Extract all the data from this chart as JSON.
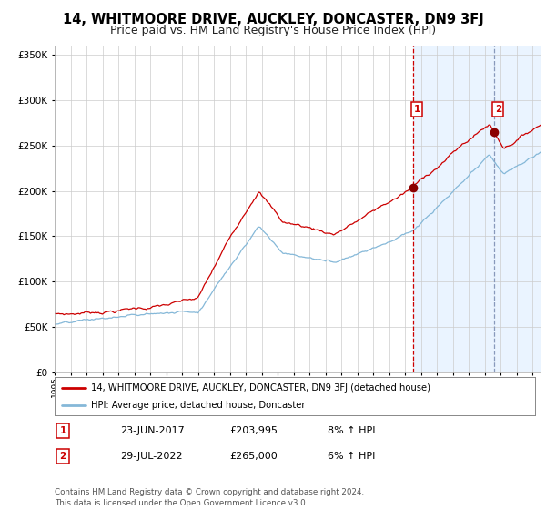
{
  "title": "14, WHITMOORE DRIVE, AUCKLEY, DONCASTER, DN9 3FJ",
  "subtitle": "Price paid vs. HM Land Registry's House Price Index (HPI)",
  "legend_line1": "14, WHITMOORE DRIVE, AUCKLEY, DONCASTER, DN9 3FJ (detached house)",
  "legend_line2": "HPI: Average price, detached house, Doncaster",
  "annotation1_date": "23-JUN-2017",
  "annotation1_price": "£203,995",
  "annotation1_hpi": "8% ↑ HPI",
  "annotation1_year": 2017.48,
  "annotation1_value": 203995,
  "annotation2_date": "29-JUL-2022",
  "annotation2_price": "£265,000",
  "annotation2_hpi": "6% ↑ HPI",
  "annotation2_year": 2022.58,
  "annotation2_value": 265000,
  "red_line_color": "#cc0000",
  "blue_line_color": "#85b8d8",
  "shading_color": "#ddeeff",
  "vline1_color": "#cc0000",
  "vline2_color": "#8899bb",
  "marker_color": "#8b0000",
  "box_edge_color": "#cc0000",
  "ylim": [
    0,
    360000
  ],
  "yticks": [
    0,
    50000,
    100000,
    150000,
    200000,
    250000,
    300000,
    350000
  ],
  "title_fontsize": 10.5,
  "subtitle_fontsize": 9,
  "footer_text": "Contains HM Land Registry data © Crown copyright and database right 2024.\nThis data is licensed under the Open Government Licence v3.0.",
  "xstart": 1995,
  "xend": 2025.5
}
